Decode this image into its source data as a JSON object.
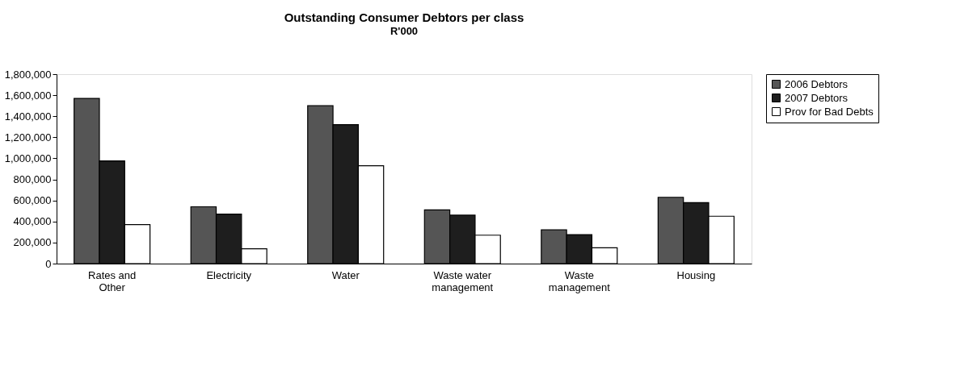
{
  "chart_data": {
    "type": "bar",
    "title": "Outstanding Consumer Debtors per class",
    "subtitle": "R'000",
    "categories": [
      "Rates and Other",
      "Electricity",
      "Water",
      "Waste water management",
      "Waste management",
      "Housing"
    ],
    "series": [
      {
        "name": "2006 Debtors",
        "color": "#555555",
        "values": [
          1570000,
          540000,
          1500000,
          510000,
          320000,
          630000
        ]
      },
      {
        "name": "2007 Debtors",
        "color": "#1e1e1e",
        "values": [
          975000,
          470000,
          1320000,
          460000,
          275000,
          580000
        ]
      },
      {
        "name": "Prov for Bad Debts",
        "color": "#ffffff",
        "values": [
          370000,
          140000,
          930000,
          270000,
          150000,
          450000
        ]
      }
    ],
    "ylim": [
      0,
      1800000
    ],
    "yticks": [
      0,
      {
        "value": 200000,
        "label": "200,000"
      },
      {
        "value": 400000,
        "label": "400,000"
      },
      {
        "value": 600000,
        "label": "600,000"
      },
      {
        "value": 800000,
        "label": "800,000"
      },
      {
        "value": 1000000,
        "label": "1,000,000"
      },
      {
        "value": 1200000,
        "label": "1,200,000"
      },
      {
        "value": 1400000,
        "label": "1,400,000"
      },
      {
        "value": 1600000,
        "label": "1,600,000"
      },
      {
        "value": 1800000,
        "label": "1,800,000"
      }
    ],
    "grid": false,
    "legend": "right"
  }
}
